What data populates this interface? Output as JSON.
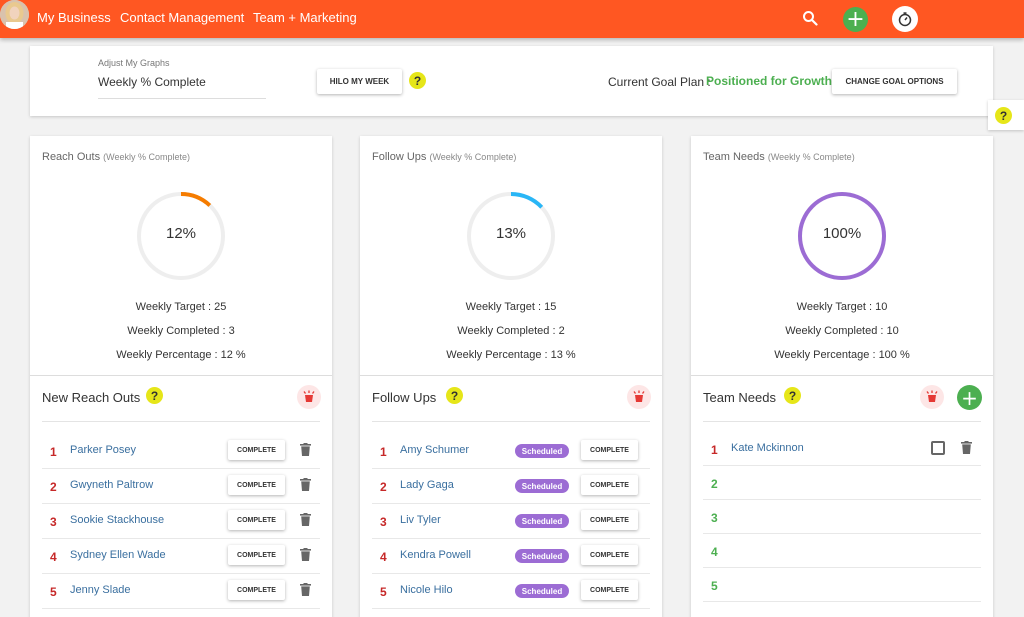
{
  "nav": {
    "items": [
      "My Business",
      "Contact Management",
      "Team + Marketing"
    ],
    "icons": [
      "search-icon",
      "add-icon",
      "timer-icon",
      "avatar"
    ]
  },
  "settings": {
    "adjust_label": "Adjust My Graphs",
    "graph_select": "Weekly % Complete",
    "hilo_button": "HILO MY WEEK",
    "goal_plan_label": "Current Goal Plan :",
    "goal_plan_value": "Positioned for Growth",
    "change_goal_button": "CHANGE GOAL OPTIONS"
  },
  "help_glyph": "?",
  "columns": [
    {
      "title": "Reach Outs",
      "subtitle": "(Weekly % Complete)",
      "percent": 12,
      "percent_label": "12%",
      "color": "#f57c00",
      "target": "Weekly Target : 25",
      "completed": "Weekly Completed : 3",
      "percentage": "Weekly Percentage : 12 %",
      "list_title": "New Reach Outs",
      "rows": [
        {
          "num": "1",
          "name": "Parker Posey",
          "action": "COMPLETE"
        },
        {
          "num": "2",
          "name": "Gwyneth Paltrow",
          "action": "COMPLETE"
        },
        {
          "num": "3",
          "name": "Sookie Stackhouse",
          "action": "COMPLETE"
        },
        {
          "num": "4",
          "name": "Sydney Ellen Wade",
          "action": "COMPLETE"
        },
        {
          "num": "5",
          "name": "Jenny Slade",
          "action": "COMPLETE"
        }
      ]
    },
    {
      "title": "Follow Ups",
      "subtitle": "(Weekly % Complete)",
      "percent": 13,
      "percent_label": "13%",
      "color": "#29b6f6",
      "target": "Weekly Target : 15",
      "completed": "Weekly Completed : 2",
      "percentage": "Weekly Percentage : 13 %",
      "list_title": "Follow Ups",
      "rows": [
        {
          "num": "1",
          "name": "Amy Schumer",
          "badge": "Scheduled",
          "action": "COMPLETE"
        },
        {
          "num": "2",
          "name": "Lady Gaga",
          "badge": "Scheduled",
          "action": "COMPLETE"
        },
        {
          "num": "3",
          "name": "Liv Tyler",
          "badge": "Scheduled",
          "action": "COMPLETE"
        },
        {
          "num": "4",
          "name": "Kendra Powell",
          "badge": "Scheduled",
          "action": "COMPLETE"
        },
        {
          "num": "5",
          "name": "Nicole Hilo",
          "badge": "Scheduled",
          "action": "COMPLETE"
        }
      ]
    },
    {
      "title": "Team Needs",
      "subtitle": "(Weekly % Complete)",
      "percent": 100,
      "percent_label": "100%",
      "color": "#9c6cd4",
      "target": "Weekly Target : 10",
      "completed": "Weekly Completed : 10",
      "percentage": "Weekly Percentage : 100 %",
      "list_title": "Team Needs",
      "rows": [
        {
          "num": "1",
          "name": "Kate Mckinnon"
        },
        {
          "num": "2",
          "name": ""
        },
        {
          "num": "3",
          "name": ""
        },
        {
          "num": "4",
          "name": ""
        },
        {
          "num": "5",
          "name": ""
        }
      ]
    }
  ]
}
